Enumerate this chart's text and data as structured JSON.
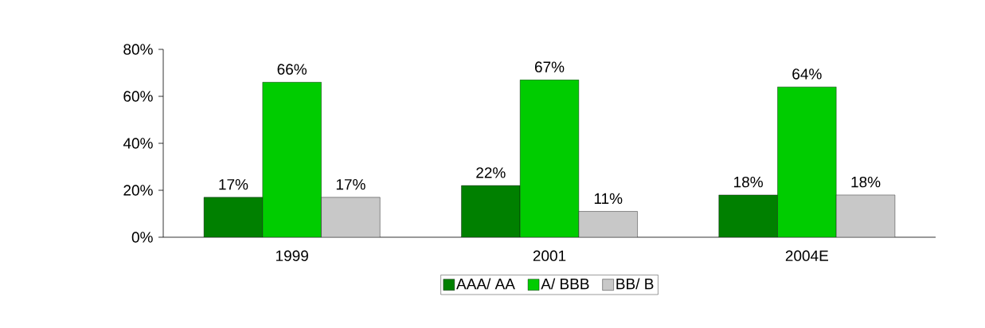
{
  "chart_data": {
    "type": "bar",
    "categories": [
      "1999",
      "2001",
      "2004E"
    ],
    "series": [
      {
        "name": "AAA/ AA",
        "color": "#008000",
        "values": [
          17,
          22,
          18
        ],
        "value_labels": [
          "17%",
          "22%",
          "18%"
        ]
      },
      {
        "name": "A/ BBB",
        "color": "#00cc00",
        "values": [
          66,
          67,
          64
        ],
        "value_labels": [
          "66%",
          "67%",
          "64%"
        ]
      },
      {
        "name": "BB/ B",
        "color": "#c8c8c8",
        "values": [
          17,
          11,
          18
        ],
        "value_labels": [
          "17%",
          "11%",
          "18%"
        ]
      }
    ],
    "ylim": [
      0,
      80
    ],
    "yticks": [
      {
        "value": 0,
        "label": "0%"
      },
      {
        "value": 20,
        "label": "20%"
      },
      {
        "value": 40,
        "label": "40%"
      },
      {
        "value": 60,
        "label": "60%"
      },
      {
        "value": 80,
        "label": "80%"
      }
    ],
    "grid": false,
    "legend": "bottom"
  }
}
